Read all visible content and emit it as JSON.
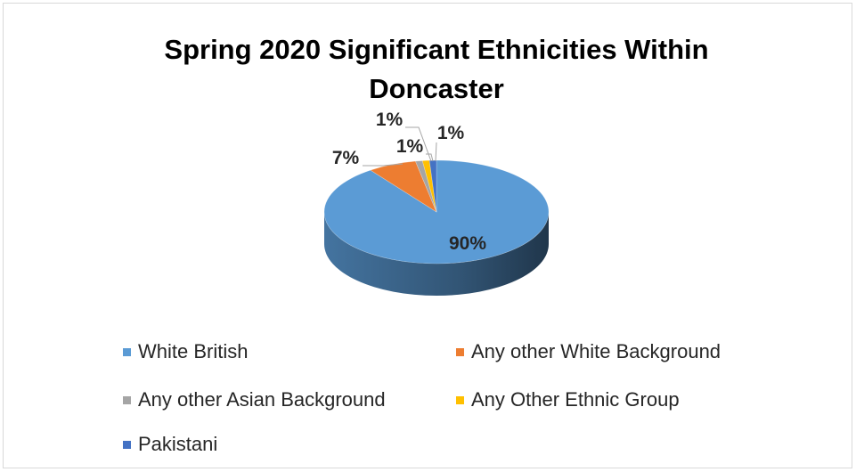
{
  "chart_data": {
    "type": "pie",
    "title": "Spring 2020 Significant Ethnicities Within Doncaster",
    "title_lines": [
      "Spring 2020 Significant Ethnicities Within",
      "Doncaster"
    ],
    "style": "3d",
    "legend_position": "bottom",
    "categories": [
      "White British",
      "Any other White Background",
      "Any other Asian Background",
      "Any Other Ethnic Group",
      "Pakistani"
    ],
    "values": [
      90,
      7,
      1,
      1,
      1
    ],
    "data_labels": [
      "90%",
      "7%",
      "1%",
      "1%",
      "1%"
    ],
    "colors": [
      "#5b9bd5",
      "#ed7d31",
      "#a5a5a5",
      "#ffc000",
      "#4472c4"
    ]
  }
}
